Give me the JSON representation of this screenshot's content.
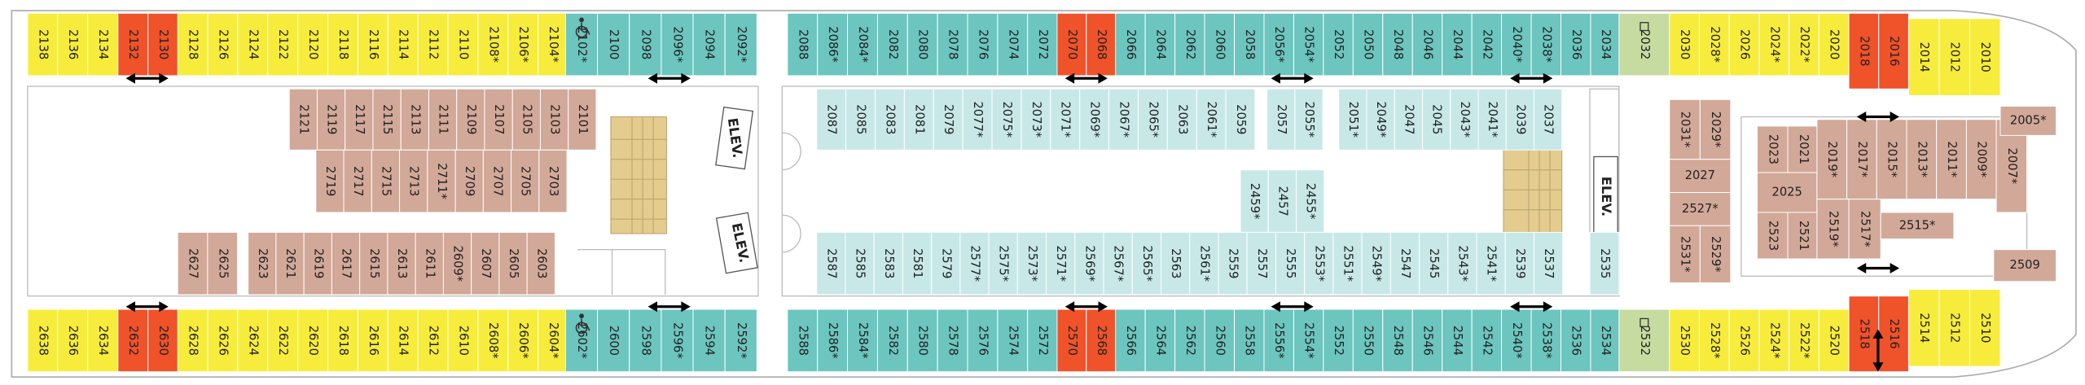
{
  "cabins": [
    {
      "color": "#f7ec3b",
      "labels": [
        "2138",
        "2136",
        "2134"
      ]
    },
    {
      "color": "#f0522a",
      "labels": [
        "2132",
        "2130"
      ]
    },
    {
      "color": "#f7ec3b",
      "labels": [
        "2128",
        "2126",
        "2124",
        "2122",
        "2120",
        "2118",
        "2116",
        "2114",
        "2112",
        "2110",
        "2108*",
        "2106*",
        "2104*"
      ]
    },
    {
      "color": "#6cc5bf",
      "labels": [
        "2102*",
        "2100",
        "2098",
        "2096*",
        "2094",
        "2092*"
      ]
    },
    {
      "color": "#6cc5bf",
      "labels": [
        "2088",
        "2086*",
        "2084*",
        "2082",
        "2080",
        "2078",
        "2076",
        "2074",
        "2072"
      ]
    },
    {
      "color": "#f0522a",
      "labels": [
        "2070",
        "2068"
      ]
    },
    {
      "color": "#6cc5bf",
      "labels": [
        "2066",
        "2064",
        "2062",
        "2060",
        "2058",
        "2056*",
        "2054*",
        "2052",
        "2050",
        "2048",
        "2046",
        "2044",
        "2042",
        "2040*",
        "2038*",
        "2036",
        "2034"
      ]
    },
    {
      "color": "#c6dba0",
      "labels": [
        "2032"
      ]
    },
    {
      "color": "#f7ec3b",
      "labels": [
        "2030",
        "2028*",
        "2026",
        "2024*",
        "2022*",
        "2020"
      ]
    },
    {
      "color": "#f0522a",
      "labels": [
        "2018",
        "2016"
      ]
    },
    {
      "color": "#f7ec3b",
      "labels": [
        "2014",
        "2012",
        "2010"
      ]
    },
    {
      "color": "#f7ec3b",
      "labels": [
        "2638",
        "2636",
        "2634"
      ]
    },
    {
      "color": "#f0522a",
      "labels": [
        "2632",
        "2630"
      ]
    },
    {
      "color": "#f7ec3b",
      "labels": [
        "2628",
        "2626",
        "2624",
        "2622",
        "2620",
        "2618",
        "2616",
        "2614",
        "2612",
        "2610",
        "2608*",
        "2606*",
        "2604*"
      ]
    },
    {
      "color": "#6cc5bf",
      "labels": [
        "2602*",
        "2600",
        "2598",
        "2596*",
        "2594",
        "2592*"
      ]
    },
    {
      "color": "#6cc5bf",
      "labels": [
        "2588",
        "2586*",
        "2584*",
        "2582",
        "2580",
        "2578",
        "2576",
        "2574",
        "2572"
      ]
    },
    {
      "color": "#f0522a",
      "labels": [
        "2570",
        "2568"
      ]
    },
    {
      "color": "#6cc5bf",
      "labels": [
        "2566",
        "2564",
        "2562",
        "2560",
        "2558",
        "2556*",
        "2554*",
        "2552",
        "2550",
        "2548",
        "2546",
        "2544",
        "2542",
        "2540*",
        "2538*",
        "2536",
        "2534"
      ]
    },
    {
      "color": "#c6dba0",
      "labels": [
        "2532"
      ]
    },
    {
      "color": "#f7ec3b",
      "labels": [
        "2530",
        "2528*",
        "2526",
        "2524*",
        "2522*",
        "2520"
      ]
    },
    {
      "color": "#f0522a",
      "labels": [
        "2518",
        "2516"
      ]
    },
    {
      "color": "#f7ec3b",
      "labels": [
        "2514",
        "2512",
        "2510"
      ]
    },
    {
      "color": "#d2a898",
      "labels": [
        "2121",
        "2119",
        "2117",
        "2115",
        "2113",
        "2111",
        "2109",
        "2107",
        "2105",
        "2103",
        "2101"
      ]
    },
    {
      "color": "#d2a898",
      "labels": [
        "2719",
        "2717",
        "2715",
        "2713",
        "2711*",
        "2709",
        "2707",
        "2705",
        "2703"
      ]
    },
    {
      "color": "#d2a898",
      "labels": [
        "2627",
        "2625"
      ]
    },
    {
      "color": "#d2a898",
      "labels": [
        "2623",
        "2621",
        "2619",
        "2617",
        "2615",
        "2613",
        "2611",
        "2609*",
        "2607",
        "2605",
        "2603"
      ]
    },
    {
      "color": "#c8e8e8",
      "labels": [
        "2087",
        "2085",
        "2083",
        "2081",
        "2079",
        "2077*",
        "2075*",
        "2073*",
        "2071*",
        "2069*",
        "2067*",
        "2065*",
        "2063",
        "2061*",
        "2059"
      ]
    },
    {
      "color": "#c8e8e8",
      "labels": [
        "2057",
        "2055*"
      ]
    },
    {
      "color": "#c8e8e8",
      "labels": [
        "2051*",
        "2049*",
        "2047",
        "2045",
        "2043*",
        "2041*",
        "2039",
        "2037"
      ]
    },
    {
      "color": "#c8e8e8",
      "labels": [
        "2459*",
        "2457",
        "2455*"
      ]
    },
    {
      "color": "#c8e8e8",
      "labels": [
        "2587",
        "2585",
        "2583",
        "2581",
        "2579",
        "2577*",
        "2575*",
        "2573*",
        "2571*",
        "2569*",
        "2567*",
        "2565*",
        "2563",
        "2561*",
        "2559",
        "2557",
        "2555",
        "2553*",
        "2551*",
        "2549*",
        "2547",
        "2545",
        "2543*",
        "2541*",
        "2539",
        "2537"
      ]
    },
    {
      "color": "#c8e8e8",
      "labels": [
        "2535"
      ]
    },
    {
      "color": "#d2a898",
      "labels": [
        "2031*",
        "2029*"
      ]
    },
    {
      "color": "#d2a898",
      "labels": [
        "2027"
      ]
    },
    {
      "color": "#d2a898",
      "labels": [
        "2527*"
      ]
    },
    {
      "color": "#d2a898",
      "labels": [
        "2531*",
        "2529*"
      ]
    },
    {
      "color": "#d2a898",
      "labels": [
        "2023",
        "2021"
      ]
    },
    {
      "color": "#d2a898",
      "labels": [
        "2025"
      ]
    },
    {
      "color": "#d2a898",
      "labels": [
        "2523",
        "2521"
      ]
    },
    {
      "color": "#d2a898",
      "labels": [
        "2019*",
        "2017*",
        "2015*",
        "2013*",
        "2011*",
        "2009*"
      ]
    },
    {
      "color": "#d2a898",
      "labels": [
        "2007*"
      ]
    },
    {
      "color": "#d2a898",
      "labels": [
        "2519*",
        "2517*"
      ]
    },
    {
      "color": "#d2a898",
      "labels": [
        "2515*"
      ]
    },
    {
      "color": "#d2a898",
      "labels": [
        "2005*"
      ]
    },
    {
      "color": "#d2a898",
      "labels": [
        "2509"
      ]
    }
  ],
  "elevators": [
    "ELEV.",
    "ELEV.",
    "ELEV."
  ]
}
